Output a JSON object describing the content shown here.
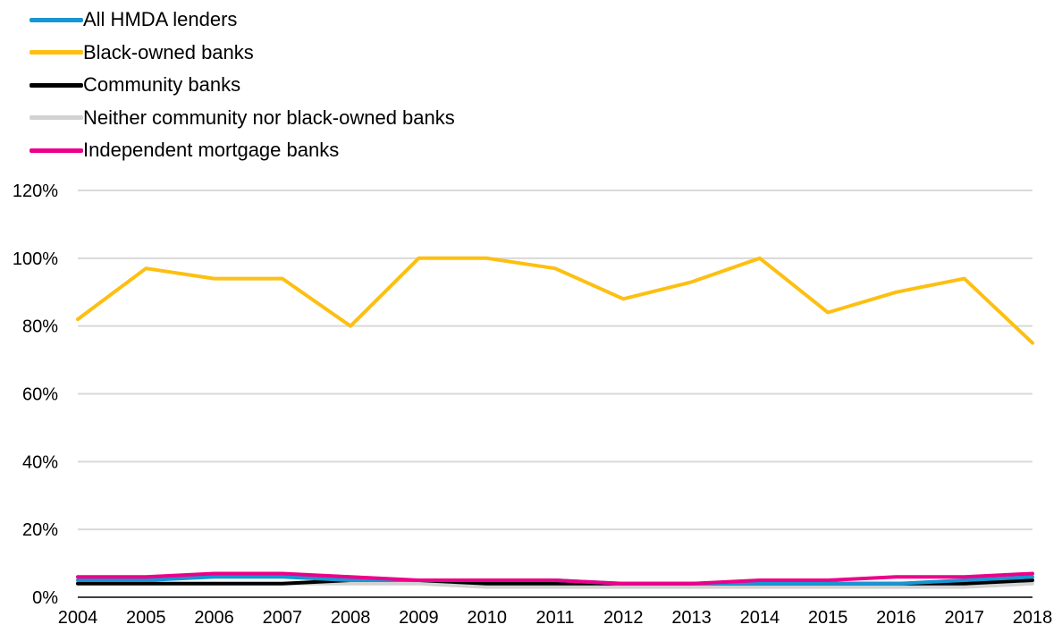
{
  "chart_data": {
    "type": "line",
    "title": "",
    "xlabel": "",
    "ylabel": "",
    "x": [
      "2004",
      "2005",
      "2006",
      "2007",
      "2008",
      "2009",
      "2010",
      "2011",
      "2012",
      "2013",
      "2014",
      "2015",
      "2016",
      "2017",
      "2018"
    ],
    "ylim": [
      0,
      120
    ],
    "yticks": [
      "0%",
      "20%",
      "40%",
      "60%",
      "80%",
      "100%",
      "120%"
    ],
    "grid": true,
    "legend_position": "top-left",
    "series": [
      {
        "name": "All HMDA lenders",
        "color": "#1696d2",
        "values": [
          5,
          5,
          6,
          6,
          5,
          5,
          5,
          5,
          4,
          4,
          4,
          4,
          4,
          5,
          6
        ]
      },
      {
        "name": "Black-owned banks",
        "color": "#fdbf11",
        "values": [
          82,
          97,
          94,
          94,
          80,
          100,
          100,
          97,
          88,
          93,
          100,
          84,
          90,
          94,
          75
        ]
      },
      {
        "name": "Community banks",
        "color": "#000000",
        "values": [
          4,
          4,
          4,
          4,
          5,
          5,
          4,
          4,
          4,
          4,
          4,
          4,
          4,
          4,
          5
        ]
      },
      {
        "name": "Neither community nor black-owned banks",
        "color": "#d2d2d2",
        "values": [
          4,
          4,
          4,
          4,
          4,
          4,
          3,
          3,
          3,
          3,
          3,
          3,
          3,
          3,
          4
        ]
      },
      {
        "name": "Independent mortgage banks",
        "color": "#ec008b",
        "values": [
          6,
          6,
          7,
          7,
          6,
          5,
          5,
          5,
          4,
          4,
          5,
          5,
          6,
          6,
          7
        ]
      }
    ]
  }
}
